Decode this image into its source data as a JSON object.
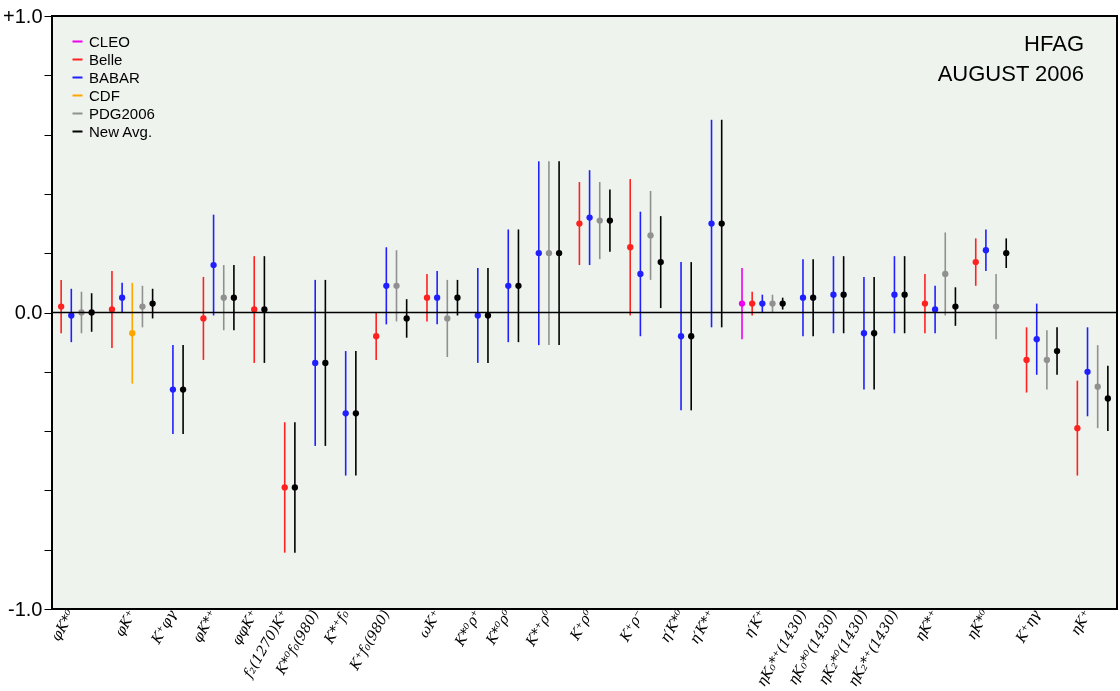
{
  "chart_data": {
    "type": "scatter",
    "categories": [
      null,
      "φK*⁰",
      null,
      null,
      null,
      null,
      null,
      "φK⁺",
      null,
      null,
      null,
      "K⁺φγ",
      null,
      null,
      null,
      "φK*⁺",
      null,
      null,
      null,
      "φφK⁺",
      null,
      null,
      "f₂(1270)K⁺",
      null,
      null,
      "K*⁰f₀(980)",
      null,
      null,
      "K*⁺f₀",
      null,
      null,
      null,
      "K⁺f₀(980)",
      null,
      null,
      null,
      null,
      "ωK⁺",
      null,
      null,
      null,
      "K*⁰ρ⁺",
      null,
      null,
      "K*⁰ρ⁰",
      null,
      null,
      null,
      "K*⁺ρ⁰",
      null,
      null,
      null,
      "K⁺ρ⁰",
      null,
      null,
      null,
      null,
      "K⁺ρ⁻",
      null,
      null,
      null,
      "η′K*⁰",
      null,
      null,
      "η′K*⁺",
      null,
      null,
      null,
      null,
      "η′K⁺",
      null,
      null,
      null,
      "ηK₀*⁺(1430)",
      null,
      null,
      "ηK₀*⁰(1430)",
      null,
      null,
      "ηK₂*⁰(1430)",
      null,
      null,
      "ηK₂*⁺(1430)",
      null,
      null,
      null,
      "ηK*⁺",
      null,
      null,
      null,
      null,
      "ηK*⁰",
      null,
      null,
      null,
      null,
      "K⁺ηγ",
      null,
      null,
      null,
      null,
      "ηK⁺",
      null,
      null
    ],
    "series": [
      {
        "name": "CLEO",
        "color": "#ee00ee",
        "values": [
          null,
          null,
          null,
          null,
          null,
          null,
          null,
          null,
          null,
          null,
          null,
          null,
          null,
          null,
          null,
          null,
          null,
          null,
          null,
          null,
          null,
          null,
          null,
          null,
          null,
          null,
          null,
          null,
          null,
          null,
          null,
          null,
          null,
          null,
          null,
          null,
          null,
          null,
          null,
          null,
          null,
          null,
          null,
          null,
          null,
          null,
          null,
          null,
          null,
          null,
          null,
          null,
          null,
          null,
          null,
          null,
          null,
          null,
          null,
          null,
          null,
          null,
          null,
          null,
          null,
          null,
          null,
          0.03,
          null,
          null,
          null,
          null,
          null,
          null,
          null,
          null,
          null,
          null,
          null,
          null,
          null,
          null,
          null,
          null,
          null,
          null,
          null,
          null,
          null,
          null,
          null,
          null,
          null,
          null,
          null,
          null,
          null,
          null,
          null,
          null,
          null,
          null,
          null,
          null
        ],
        "errors": [
          null,
          null,
          null,
          null,
          null,
          null,
          null,
          null,
          null,
          null,
          null,
          null,
          null,
          null,
          null,
          null,
          null,
          null,
          null,
          null,
          null,
          null,
          null,
          null,
          null,
          null,
          null,
          null,
          null,
          null,
          null,
          null,
          null,
          null,
          null,
          null,
          null,
          null,
          null,
          null,
          null,
          null,
          null,
          null,
          null,
          null,
          null,
          null,
          null,
          null,
          null,
          null,
          null,
          null,
          null,
          null,
          null,
          null,
          null,
          null,
          null,
          null,
          null,
          null,
          null,
          null,
          null,
          0.12,
          null,
          null,
          null,
          null,
          null,
          null,
          null,
          null,
          null,
          null,
          null,
          null,
          null,
          null,
          null,
          null,
          null,
          null,
          null,
          null,
          null,
          null,
          null,
          null,
          null,
          null,
          null,
          null,
          null,
          null,
          null,
          null,
          null,
          null,
          null,
          null
        ]
      },
      {
        "name": "Belle",
        "color": "#ff2020",
        "values": [
          0.02,
          null,
          null,
          null,
          null,
          0.01,
          null,
          null,
          null,
          null,
          null,
          null,
          null,
          null,
          -0.02,
          null,
          null,
          null,
          null,
          0.01,
          null,
          null,
          -0.59,
          null,
          null,
          null,
          null,
          null,
          null,
          null,
          null,
          -0.08,
          null,
          null,
          null,
          null,
          0.05,
          null,
          null,
          null,
          null,
          null,
          null,
          null,
          null,
          null,
          null,
          null,
          null,
          null,
          null,
          0.3,
          null,
          null,
          null,
          null,
          0.22,
          null,
          null,
          null,
          null,
          null,
          null,
          null,
          null,
          null,
          null,
          null,
          0.03,
          null,
          null,
          null,
          null,
          null,
          null,
          null,
          null,
          null,
          null,
          null,
          null,
          null,
          null,
          null,
          null,
          0.03,
          null,
          null,
          null,
          null,
          0.17,
          null,
          null,
          null,
          null,
          -0.16,
          null,
          null,
          null,
          null,
          -0.39,
          null,
          null,
          null
        ],
        "errors": [
          0.09,
          null,
          null,
          null,
          null,
          0.13,
          null,
          null,
          null,
          null,
          null,
          null,
          null,
          null,
          0.14,
          null,
          null,
          null,
          null,
          0.18,
          null,
          null,
          0.22,
          null,
          null,
          null,
          null,
          null,
          null,
          null,
          null,
          0.08,
          null,
          null,
          null,
          null,
          0.08,
          null,
          null,
          null,
          null,
          null,
          null,
          null,
          null,
          null,
          null,
          null,
          null,
          null,
          null,
          0.14,
          null,
          null,
          null,
          null,
          0.23,
          null,
          null,
          null,
          null,
          null,
          null,
          null,
          null,
          null,
          null,
          null,
          0.04,
          null,
          null,
          null,
          null,
          null,
          null,
          null,
          null,
          null,
          null,
          null,
          null,
          null,
          null,
          null,
          null,
          0.1,
          null,
          null,
          null,
          null,
          0.08,
          null,
          null,
          null,
          null,
          0.11,
          null,
          null,
          null,
          null,
          0.16,
          null,
          null,
          null
        ]
      },
      {
        "name": "BABAR",
        "color": "#2020ff",
        "values": [
          null,
          -0.01,
          null,
          null,
          null,
          null,
          0.05,
          null,
          null,
          null,
          null,
          -0.26,
          null,
          null,
          null,
          0.16,
          null,
          null,
          null,
          null,
          null,
          null,
          null,
          null,
          null,
          -0.17,
          null,
          null,
          -0.34,
          null,
          null,
          null,
          0.09,
          null,
          null,
          null,
          null,
          0.05,
          null,
          null,
          null,
          -0.01,
          null,
          null,
          0.09,
          null,
          null,
          0.2,
          null,
          null,
          null,
          null,
          0.32,
          null,
          null,
          null,
          null,
          0.13,
          null,
          null,
          null,
          -0.08,
          null,
          null,
          0.3,
          null,
          null,
          null,
          null,
          0.03,
          null,
          null,
          null,
          0.05,
          null,
          null,
          0.06,
          null,
          null,
          -0.07,
          null,
          null,
          0.06,
          null,
          null,
          null,
          0.01,
          null,
          null,
          null,
          null,
          0.21,
          null,
          null,
          null,
          null,
          -0.09,
          null,
          null,
          null,
          null,
          -0.2,
          null,
          null
        ],
        "errors": [
          null,
          0.09,
          null,
          null,
          null,
          null,
          0.05,
          null,
          null,
          null,
          null,
          0.15,
          null,
          null,
          null,
          0.17,
          null,
          null,
          null,
          null,
          null,
          null,
          null,
          null,
          null,
          0.28,
          null,
          null,
          0.21,
          null,
          null,
          null,
          0.13,
          null,
          null,
          null,
          null,
          0.09,
          null,
          null,
          null,
          0.16,
          null,
          null,
          0.19,
          null,
          null,
          0.31,
          null,
          null,
          null,
          null,
          0.16,
          null,
          null,
          null,
          null,
          0.21,
          null,
          null,
          null,
          0.25,
          null,
          null,
          0.35,
          null,
          null,
          null,
          null,
          0.03,
          null,
          null,
          null,
          0.13,
          null,
          null,
          0.13,
          null,
          null,
          0.19,
          null,
          null,
          0.13,
          null,
          null,
          null,
          0.08,
          null,
          null,
          null,
          null,
          0.07,
          null,
          null,
          null,
          null,
          0.12,
          null,
          null,
          null,
          null,
          0.15,
          null,
          null
        ]
      },
      {
        "name": "CDF",
        "color": "#ffa500",
        "values": [
          null,
          null,
          null,
          null,
          null,
          null,
          null,
          -0.07,
          null,
          null,
          null,
          null,
          null,
          null,
          null,
          null,
          null,
          null,
          null,
          null,
          null,
          null,
          null,
          null,
          null,
          null,
          null,
          null,
          null,
          null,
          null,
          null,
          null,
          null,
          null,
          null,
          null,
          null,
          null,
          null,
          null,
          null,
          null,
          null,
          null,
          null,
          null,
          null,
          null,
          null,
          null,
          null,
          null,
          null,
          null,
          null,
          null,
          null,
          null,
          null,
          null,
          null,
          null,
          null,
          null,
          null,
          null,
          null,
          null,
          null,
          null,
          null,
          null,
          null,
          null,
          null,
          null,
          null,
          null,
          null,
          null,
          null,
          null,
          null,
          null,
          null,
          null,
          null,
          null,
          null,
          null,
          null,
          null,
          null,
          null,
          null,
          null,
          null,
          null,
          null,
          null,
          null,
          null,
          null
        ],
        "errors": [
          null,
          null,
          null,
          null,
          null,
          null,
          null,
          0.17,
          null,
          null,
          null,
          null,
          null,
          null,
          null,
          null,
          null,
          null,
          null,
          null,
          null,
          null,
          null,
          null,
          null,
          null,
          null,
          null,
          null,
          null,
          null,
          null,
          null,
          null,
          null,
          null,
          null,
          null,
          null,
          null,
          null,
          null,
          null,
          null,
          null,
          null,
          null,
          null,
          null,
          null,
          null,
          null,
          null,
          null,
          null,
          null,
          null,
          null,
          null,
          null,
          null,
          null,
          null,
          null,
          null,
          null,
          null,
          null,
          null,
          null,
          null,
          null,
          null,
          null,
          null,
          null,
          null,
          null,
          null,
          null,
          null,
          null,
          null,
          null,
          null,
          null,
          null,
          null,
          null,
          null,
          null,
          null,
          null,
          null,
          null,
          null,
          null,
          null,
          null,
          null,
          null,
          null,
          null,
          null
        ]
      },
      {
        "name": "PDG2006",
        "color": "#909090",
        "values": [
          null,
          null,
          0.0,
          null,
          null,
          null,
          null,
          null,
          0.02,
          null,
          null,
          null,
          null,
          null,
          null,
          null,
          0.05,
          null,
          null,
          null,
          null,
          null,
          null,
          null,
          null,
          null,
          null,
          null,
          null,
          null,
          null,
          null,
          null,
          0.09,
          null,
          null,
          null,
          null,
          -0.02,
          null,
          null,
          null,
          null,
          null,
          null,
          null,
          null,
          null,
          0.2,
          null,
          null,
          null,
          null,
          0.31,
          null,
          null,
          null,
          null,
          0.26,
          null,
          null,
          null,
          null,
          null,
          null,
          null,
          null,
          null,
          null,
          null,
          0.03,
          null,
          null,
          null,
          null,
          null,
          null,
          null,
          null,
          null,
          null,
          null,
          null,
          null,
          null,
          null,
          null,
          0.13,
          null,
          null,
          null,
          null,
          0.02,
          null,
          null,
          null,
          null,
          -0.16,
          null,
          null,
          null,
          null,
          -0.25,
          null
        ],
        "errors": [
          null,
          null,
          0.07,
          null,
          null,
          null,
          null,
          null,
          0.07,
          null,
          null,
          null,
          null,
          null,
          null,
          null,
          0.11,
          null,
          null,
          null,
          null,
          null,
          null,
          null,
          null,
          null,
          null,
          null,
          null,
          null,
          null,
          null,
          null,
          0.12,
          null,
          null,
          null,
          null,
          0.13,
          null,
          null,
          null,
          null,
          null,
          null,
          null,
          null,
          null,
          0.31,
          null,
          null,
          null,
          null,
          0.13,
          null,
          null,
          null,
          null,
          0.15,
          null,
          null,
          null,
          null,
          null,
          null,
          null,
          null,
          null,
          null,
          null,
          0.03,
          null,
          null,
          null,
          null,
          null,
          null,
          null,
          null,
          null,
          null,
          null,
          null,
          null,
          null,
          null,
          null,
          0.14,
          null,
          null,
          null,
          null,
          0.11,
          null,
          null,
          null,
          null,
          0.1,
          null,
          null,
          null,
          null,
          0.14,
          null
        ]
      },
      {
        "name": "New Avg.",
        "color": "#000000",
        "values": [
          null,
          null,
          null,
          0.0,
          null,
          null,
          null,
          null,
          null,
          0.03,
          null,
          null,
          -0.26,
          null,
          null,
          null,
          null,
          0.05,
          null,
          null,
          0.01,
          null,
          null,
          -0.59,
          null,
          null,
          -0.17,
          null,
          null,
          -0.34,
          null,
          null,
          null,
          null,
          -0.02,
          null,
          null,
          null,
          null,
          0.05,
          null,
          null,
          -0.01,
          null,
          null,
          0.09,
          null,
          null,
          null,
          0.2,
          null,
          null,
          null,
          null,
          0.31,
          null,
          null,
          null,
          null,
          0.17,
          null,
          null,
          -0.08,
          null,
          null,
          0.3,
          null,
          null,
          null,
          null,
          null,
          0.03,
          null,
          null,
          0.05,
          null,
          null,
          0.06,
          null,
          null,
          -0.07,
          null,
          null,
          0.06,
          null,
          null,
          null,
          null,
          0.02,
          null,
          null,
          null,
          null,
          0.2,
          null,
          null,
          null,
          null,
          -0.13,
          null,
          null,
          null,
          null,
          -0.29
        ],
        "errors": [
          null,
          null,
          null,
          0.065,
          null,
          null,
          null,
          null,
          null,
          0.05,
          null,
          null,
          0.15,
          null,
          null,
          null,
          null,
          0.11,
          null,
          null,
          0.18,
          null,
          null,
          0.22,
          null,
          null,
          0.28,
          null,
          null,
          0.21,
          null,
          null,
          null,
          null,
          0.065,
          null,
          null,
          null,
          null,
          0.06,
          null,
          null,
          0.16,
          null,
          null,
          0.19,
          null,
          null,
          null,
          0.31,
          null,
          null,
          null,
          null,
          0.105,
          null,
          null,
          null,
          null,
          0.155,
          null,
          null,
          0.25,
          null,
          null,
          0.35,
          null,
          null,
          null,
          null,
          null,
          0.02,
          null,
          null,
          0.13,
          null,
          null,
          0.13,
          null,
          null,
          0.19,
          null,
          null,
          0.13,
          null,
          null,
          null,
          null,
          0.065,
          null,
          null,
          null,
          null,
          0.05,
          null,
          null,
          null,
          null,
          0.08,
          null,
          null,
          null,
          null,
          0.11
        ]
      }
    ],
    "ylim": [
      -1.0,
      1.0
    ],
    "yticks": [
      {
        "value": -1.0,
        "label": "-1.0"
      },
      {
        "value": -0.8,
        "label": null
      },
      {
        "value": -0.6,
        "label": null
      },
      {
        "value": -0.4,
        "label": null
      },
      {
        "value": -0.2,
        "label": null
      },
      {
        "value": 0.0,
        "label": "0.0"
      },
      {
        "value": 0.2,
        "label": null
      },
      {
        "value": 0.4,
        "label": null
      },
      {
        "value": 0.6,
        "label": null
      },
      {
        "value": 0.8,
        "label": null
      },
      {
        "value": 1.0,
        "label": "+1.0"
      }
    ],
    "ref_lines": [
      {
        "axis": "y",
        "value": 0.0,
        "color": "#000000"
      }
    ],
    "annotations": [
      "HFAG",
      "AUGUST 2006"
    ],
    "marker": "circle",
    "grid": false,
    "legend": "top left"
  }
}
